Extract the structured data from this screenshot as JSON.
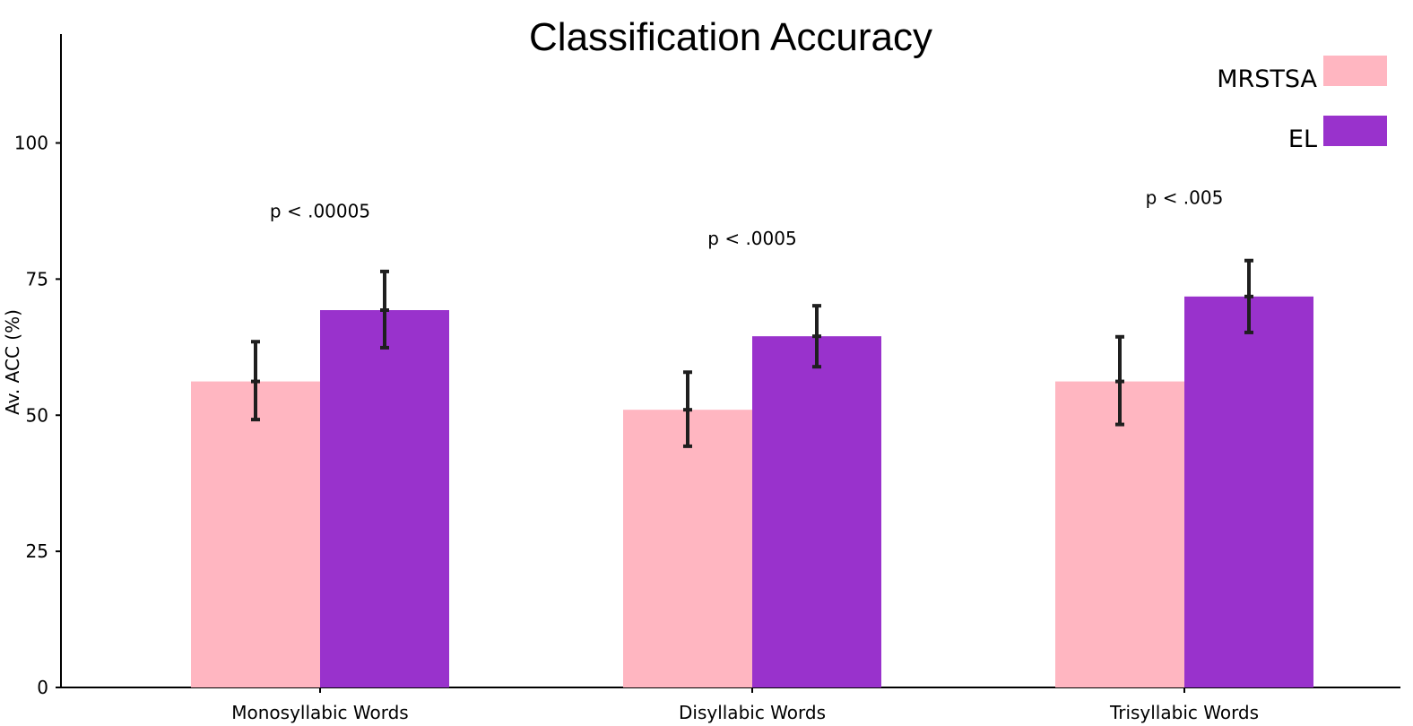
{
  "chart_data": {
    "type": "bar",
    "title": "Classification Accuracy",
    "xlabel": "",
    "ylabel": "Av. ACC (%)",
    "ylim": [
      0,
      120
    ],
    "yticks": [
      0,
      25,
      50,
      75,
      100
    ],
    "categories": [
      "Monosyllabic Words",
      "Disyllabic Words",
      "Trisyllabic Words"
    ],
    "series": [
      {
        "name": "MRSTSA",
        "color": "#FFB6C1",
        "values": [
          56.2,
          51.0,
          56.2
        ],
        "error_low": [
          49.2,
          44.3,
          48.3
        ],
        "error_high": [
          63.5,
          57.9,
          64.4
        ]
      },
      {
        "name": "EL",
        "color": "#9932CC",
        "values": [
          69.3,
          64.5,
          71.8
        ],
        "error_low": [
          62.4,
          58.9,
          65.2
        ],
        "error_high": [
          76.4,
          70.1,
          78.4
        ]
      }
    ],
    "annotations": [
      "p < .00005",
      "p < .0005",
      "p < .005"
    ],
    "annotation_y": [
      87.5,
      82.5,
      90.0
    ],
    "legend_position": "top-right",
    "grid": false
  }
}
